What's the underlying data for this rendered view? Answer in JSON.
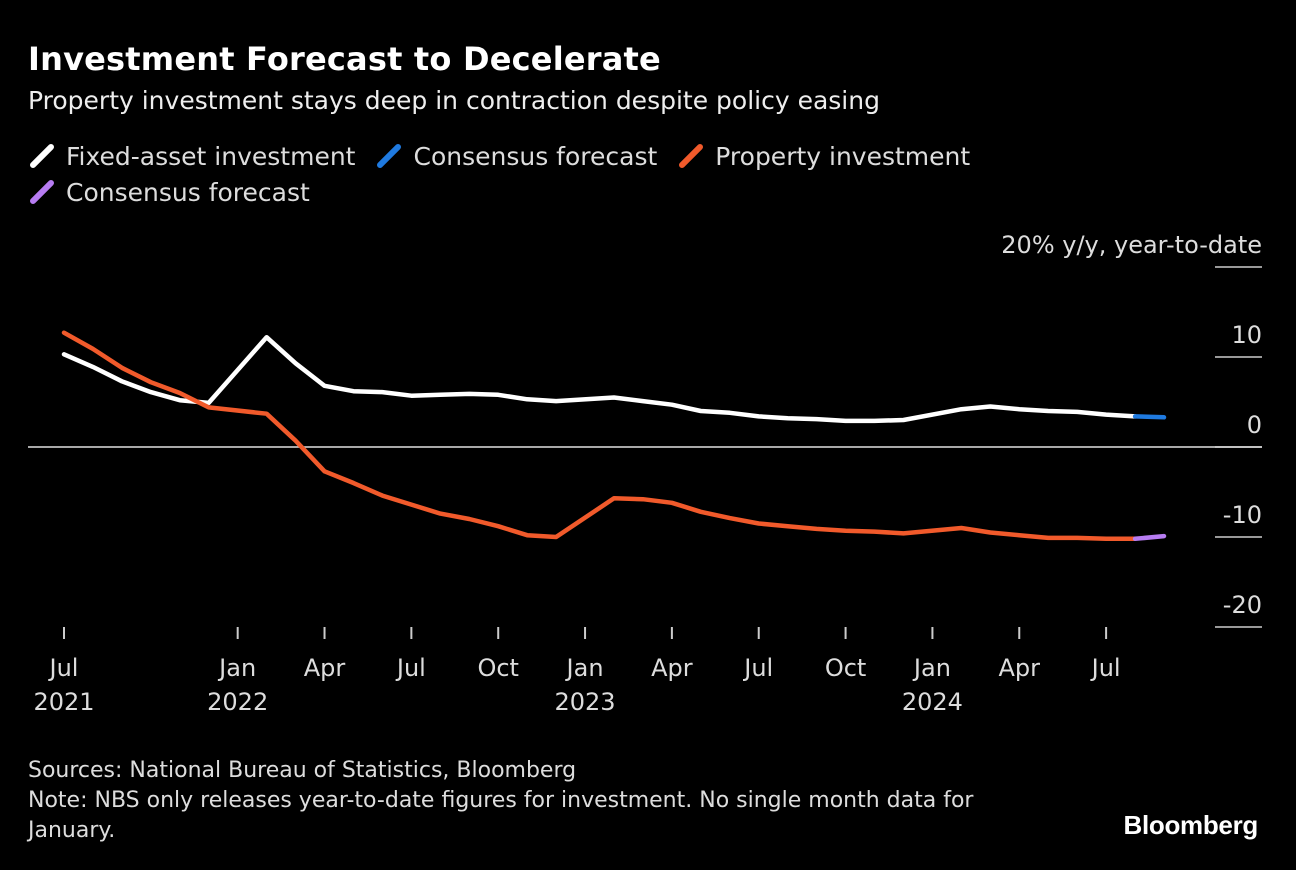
{
  "header": {
    "title": "Investment Forecast to Decelerate",
    "subtitle": "Property investment stays deep in contraction despite policy easing"
  },
  "legend": [
    {
      "label": "Fixed-asset investment",
      "color": "#ffffff"
    },
    {
      "label": "Consensus forecast",
      "color": "#1f7ae0"
    },
    {
      "label": "Property investment",
      "color": "#f15a2b"
    },
    {
      "label": "Consensus forecast",
      "color": "#b77cf2"
    }
  ],
  "footer": {
    "sources": "Sources: National Bureau of Statistics, Bloomberg",
    "note": "Note: NBS only releases year-to-date figures for investment. No single month data for January."
  },
  "brand": "Bloomberg",
  "chart_data": {
    "type": "line",
    "ylabel": "20% y/y, year-to-date",
    "ylim": [
      -20,
      20
    ],
    "yticks": [
      {
        "value": 20,
        "label": "20% y/y, year-to-date"
      },
      {
        "value": 10,
        "label": "10"
      },
      {
        "value": 0,
        "label": "0"
      },
      {
        "value": -10,
        "label": "-10"
      },
      {
        "value": -20,
        "label": "-20"
      }
    ],
    "xlim": [
      "2021-07",
      "2024-09"
    ],
    "xticks": [
      {
        "date": "2021-07",
        "label": "Jul",
        "year": "2021"
      },
      {
        "date": "2022-01",
        "label": "Jan",
        "year": "2022"
      },
      {
        "date": "2022-04",
        "label": "Apr",
        "year": ""
      },
      {
        "date": "2022-07",
        "label": "Jul",
        "year": ""
      },
      {
        "date": "2022-10",
        "label": "Oct",
        "year": ""
      },
      {
        "date": "2023-01",
        "label": "Jan",
        "year": "2023"
      },
      {
        "date": "2023-04",
        "label": "Apr",
        "year": ""
      },
      {
        "date": "2023-07",
        "label": "Jul",
        "year": ""
      },
      {
        "date": "2023-10",
        "label": "Oct",
        "year": ""
      },
      {
        "date": "2024-01",
        "label": "Jan",
        "year": "2024"
      },
      {
        "date": "2024-04",
        "label": "Apr",
        "year": ""
      },
      {
        "date": "2024-07",
        "label": "Jul",
        "year": ""
      }
    ],
    "zero_line": true,
    "series": [
      {
        "name": "Fixed-asset investment",
        "color": "#ffffff",
        "points": [
          [
            "2021-07",
            10.3
          ],
          [
            "2021-08",
            8.9
          ],
          [
            "2021-09",
            7.3
          ],
          [
            "2021-10",
            6.1
          ],
          [
            "2021-11",
            5.2
          ],
          [
            "2021-12",
            4.9
          ],
          [
            "2022-02",
            12.2
          ],
          [
            "2022-03",
            9.3
          ],
          [
            "2022-04",
            6.8
          ],
          [
            "2022-05",
            6.2
          ],
          [
            "2022-06",
            6.1
          ],
          [
            "2022-07",
            5.7
          ],
          [
            "2022-08",
            5.8
          ],
          [
            "2022-09",
            5.9
          ],
          [
            "2022-10",
            5.8
          ],
          [
            "2022-11",
            5.3
          ],
          [
            "2022-12",
            5.1
          ],
          [
            "2023-02",
            5.5
          ],
          [
            "2023-03",
            5.1
          ],
          [
            "2023-04",
            4.7
          ],
          [
            "2023-05",
            4.0
          ],
          [
            "2023-06",
            3.8
          ],
          [
            "2023-07",
            3.4
          ],
          [
            "2023-08",
            3.2
          ],
          [
            "2023-09",
            3.1
          ],
          [
            "2023-10",
            2.9
          ],
          [
            "2023-11",
            2.9
          ],
          [
            "2023-12",
            3.0
          ],
          [
            "2024-02",
            4.2
          ],
          [
            "2024-03",
            4.5
          ],
          [
            "2024-04",
            4.2
          ],
          [
            "2024-05",
            4.0
          ],
          [
            "2024-06",
            3.9
          ],
          [
            "2024-07",
            3.6
          ],
          [
            "2024-08",
            3.4
          ]
        ]
      },
      {
        "name": "Consensus forecast",
        "color": "#1f7ae0",
        "points": [
          [
            "2024-08",
            3.4
          ],
          [
            "2024-09",
            3.3
          ]
        ]
      },
      {
        "name": "Property investment",
        "color": "#f15a2b",
        "points": [
          [
            "2021-07",
            12.7
          ],
          [
            "2021-08",
            10.9
          ],
          [
            "2021-09",
            8.8
          ],
          [
            "2021-10",
            7.2
          ],
          [
            "2021-11",
            6.0
          ],
          [
            "2021-12",
            4.4
          ],
          [
            "2022-02",
            3.7
          ],
          [
            "2022-03",
            0.7
          ],
          [
            "2022-04",
            -2.7
          ],
          [
            "2022-05",
            -4.0
          ],
          [
            "2022-06",
            -5.4
          ],
          [
            "2022-07",
            -6.4
          ],
          [
            "2022-08",
            -7.4
          ],
          [
            "2022-09",
            -8.0
          ],
          [
            "2022-10",
            -8.8
          ],
          [
            "2022-11",
            -9.8
          ],
          [
            "2022-12",
            -10.0
          ],
          [
            "2023-02",
            -5.7
          ],
          [
            "2023-03",
            -5.8
          ],
          [
            "2023-04",
            -6.2
          ],
          [
            "2023-05",
            -7.2
          ],
          [
            "2023-06",
            -7.9
          ],
          [
            "2023-07",
            -8.5
          ],
          [
            "2023-08",
            -8.8
          ],
          [
            "2023-09",
            -9.1
          ],
          [
            "2023-10",
            -9.3
          ],
          [
            "2023-11",
            -9.4
          ],
          [
            "2023-12",
            -9.6
          ],
          [
            "2024-02",
            -9.0
          ],
          [
            "2024-03",
            -9.5
          ],
          [
            "2024-04",
            -9.8
          ],
          [
            "2024-05",
            -10.1
          ],
          [
            "2024-06",
            -10.1
          ],
          [
            "2024-07",
            -10.2
          ],
          [
            "2024-08",
            -10.2
          ]
        ]
      },
      {
        "name": "Consensus forecast",
        "color": "#b77cf2",
        "points": [
          [
            "2024-08",
            -10.2
          ],
          [
            "2024-09",
            -9.9
          ]
        ]
      }
    ]
  }
}
